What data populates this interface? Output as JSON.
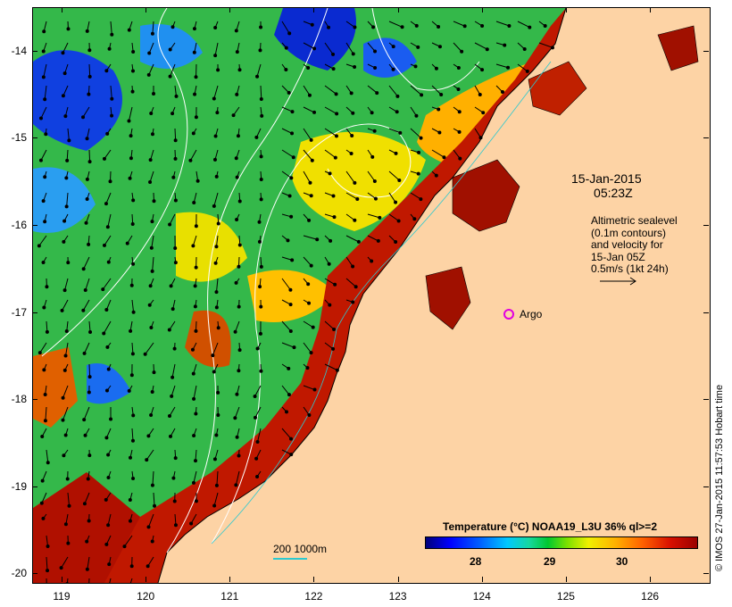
{
  "map": {
    "y_ticks": [
      "-14",
      "-15",
      "-16",
      "-17",
      "-18",
      "-19",
      "-20"
    ],
    "x_ticks": [
      "119",
      "120",
      "121",
      "122",
      "123",
      "124",
      "125",
      "126"
    ],
    "lat_range": [
      -20.1,
      -13.5
    ],
    "lon_range": [
      118.65,
      126.7
    ]
  },
  "legend": {
    "title": "Temperature (°C) NOAA19_L3U 36% ql>=2",
    "ticks": [
      "28",
      "29",
      "30"
    ]
  },
  "annotations": {
    "date": "15-Jan-2015",
    "time": "05:23Z",
    "altimetry_lines": [
      "Altimetric sealevel",
      "(0.1m contours)",
      "and velocity for",
      "15-Jan 05Z",
      "0.5m/s (1kt 24h)"
    ],
    "argo": "Argo",
    "scale": "200  1000m",
    "footer": "© IMOS 27-Jan-2015 11:57:53 Hobart time"
  },
  "colors": {
    "land": "#fdd3a5",
    "argo_marker": "#e000e0",
    "contour": "#ffffff",
    "isobath": "#2bc9d0",
    "sst_scale": [
      "#00007a",
      "#0000ff",
      "#0060ff",
      "#00c8ff",
      "#16d8a0",
      "#00c830",
      "#7ae000",
      "#f0f000",
      "#ffb000",
      "#ff6000",
      "#d81000",
      "#9a0000"
    ]
  }
}
